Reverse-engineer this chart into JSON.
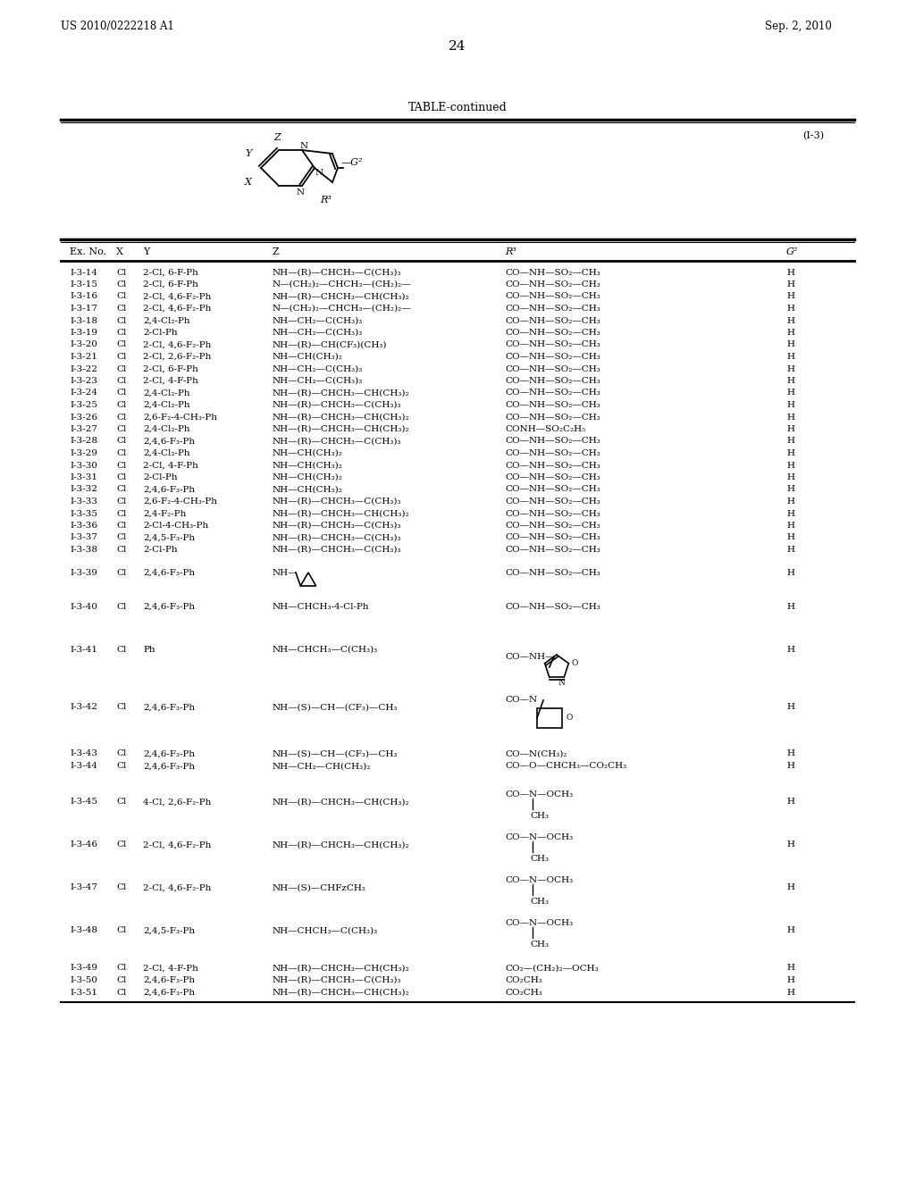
{
  "patent_left": "US 2010/0222218 A1",
  "patent_right": "Sep. 2, 2010",
  "page_number": "24",
  "table_title": "TABLE-continued",
  "formula_label": "(I-3)",
  "bg_color": "#ffffff",
  "text_color": "#000000",
  "font_size": 7.5,
  "rows_regular": [
    [
      "I-3-14",
      "Cl",
      "2-Cl, 6-F-Ph",
      "NH—(R)—CHCH₃—C(CH₃)₃",
      "CO—NH—SO₂—CH₃",
      "H"
    ],
    [
      "I-3-15",
      "Cl",
      "2-Cl, 6-F-Ph",
      "N—(CH₂)₂—CHCH₃—(CH₂)₂—",
      "CO—NH—SO₂—CH₃",
      "H"
    ],
    [
      "I-3-16",
      "Cl",
      "2-Cl, 4,6-F₂-Ph",
      "NH—(R)—CHCH₃—CH(CH₃)₂",
      "CO—NH—SO₂—CH₃",
      "H"
    ],
    [
      "I-3-17",
      "Cl",
      "2-Cl, 4,6-F₂-Ph",
      "N—(CH₂)₂—CHCH₃—(CH₂)₂—",
      "CO—NH—SO₂—CH₃",
      "H"
    ],
    [
      "I-3-18",
      "Cl",
      "2,4-Cl₂-Ph",
      "NH—CH₂—C(CH₃)₃",
      "CO—NH—SO₂—CH₃",
      "H"
    ],
    [
      "I-3-19",
      "Cl",
      "2-Cl-Ph",
      "NH—CH₂—C(CH₃)₃",
      "CO—NH—SO₂—CH₃",
      "H"
    ],
    [
      "I-3-20",
      "Cl",
      "2-Cl, 4,6-F₂-Ph",
      "NH—(R)—CH(CF₃)(CH₃)",
      "CO—NH—SO₂—CH₃",
      "H"
    ],
    [
      "I-3-21",
      "Cl",
      "2-Cl, 2,6-F₂-Ph",
      "NH—CH(CH₃)₂",
      "CO—NH—SO₂—CH₃",
      "H"
    ],
    [
      "I-3-22",
      "Cl",
      "2-Cl, 6-F-Ph",
      "NH—CH₂—C(CH₃)₃",
      "CO—NH—SO₂—CH₃",
      "H"
    ],
    [
      "I-3-23",
      "Cl",
      "2-Cl, 4-F-Ph",
      "NH—CH₂—C(CH₃)₃",
      "CO—NH—SO₂—CH₃",
      "H"
    ],
    [
      "I-3-24",
      "Cl",
      "2,4-Cl₂-Ph",
      "NH—(R)—CHCH₃—CH(CH₃)₂",
      "CO—NH—SO₂—CH₃",
      "H"
    ],
    [
      "I-3-25",
      "Cl",
      "2,4-Cl₂-Ph",
      "NH—(R)—CHCH₃—C(CH₃)₃",
      "CO—NH—SO₂—CH₃",
      "H"
    ],
    [
      "I-3-26",
      "Cl",
      "2,6-F₂-4-CH₃-Ph",
      "NH—(R)—CHCH₃—CH(CH₃)₂",
      "CO—NH—SO₂—CH₃",
      "H"
    ],
    [
      "I-3-27",
      "Cl",
      "2,4-Cl₂-Ph",
      "NH—(R)—CHCH₃—CH(CH₃)₂",
      "CONH—SO₂C₂H₅",
      "H"
    ],
    [
      "I-3-28",
      "Cl",
      "2,4,6-F₃-Ph",
      "NH—(R)—CHCH₃—C(CH₃)₃",
      "CO—NH—SO₂—CH₃",
      "H"
    ],
    [
      "I-3-29",
      "Cl",
      "2,4-Cl₂-Ph",
      "NH—CH(CH₃)₂",
      "CO—NH—SO₂—CH₃",
      "H"
    ],
    [
      "I-3-30",
      "Cl",
      "2-Cl, 4-F-Ph",
      "NH—CH(CH₃)₂",
      "CO—NH—SO₂—CH₃",
      "H"
    ],
    [
      "I-3-31",
      "Cl",
      "2-Cl-Ph",
      "NH—CH(CH₃)₂",
      "CO—NH—SO₂—CH₃",
      "H"
    ],
    [
      "I-3-32",
      "Cl",
      "2,4,6-F₃-Ph",
      "NH—CH(CH₃)₂",
      "CO—NH—SO₂—CH₃",
      "H"
    ],
    [
      "I-3-33",
      "Cl",
      "2,6-F₂-4-CH₃-Ph",
      "NH—(R)—CHCH₃—C(CH₃)₃",
      "CO—NH—SO₂—CH₃",
      "H"
    ],
    [
      "I-3-35",
      "Cl",
      "2,4-F₂-Ph",
      "NH—(R)—CHCH₃—CH(CH₃)₂",
      "CO—NH—SO₂—CH₃",
      "H"
    ],
    [
      "I-3-36",
      "Cl",
      "2-Cl-4-CH₃-Ph",
      "NH—(R)—CHCH₃—C(CH₃)₃",
      "CO—NH—SO₂—CH₃",
      "H"
    ],
    [
      "I-3-37",
      "Cl",
      "2,4,5-F₃-Ph",
      "NH—(R)—CHCH₃—C(CH₃)₃",
      "CO—NH—SO₂—CH₃",
      "H"
    ],
    [
      "I-3-38",
      "Cl",
      "2-Cl-Ph",
      "NH—(R)—CHCH₃—C(CH₃)₃",
      "CO—NH—SO₂—CH₃",
      "H"
    ]
  ]
}
